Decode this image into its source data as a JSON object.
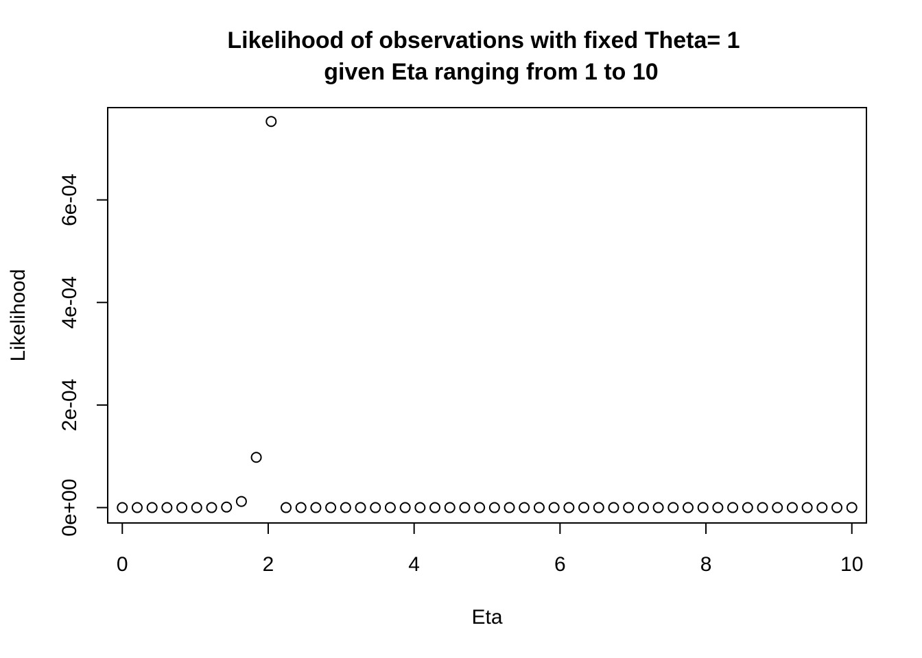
{
  "chart_data": {
    "type": "scatter",
    "title": "Likelihood of observations with fixed Theta= 1",
    "subtitle": "given Eta ranging from 1 to 10",
    "xlabel": "Eta",
    "ylabel": "Likelihood",
    "xlim": [
      -0.2,
      10.2
    ],
    "ylim": [
      -3e-05,
      0.00078
    ],
    "x_ticks": [
      0,
      2,
      4,
      6,
      8,
      10
    ],
    "x_tick_labels": [
      "0",
      "2",
      "4",
      "6",
      "8",
      "10"
    ],
    "y_ticks": [
      0,
      0.0002,
      0.0004,
      0.0006
    ],
    "y_tick_labels": [
      "0e+00",
      "2e-04",
      "4e-04",
      "6e-04"
    ],
    "grid": false,
    "legend": "none",
    "x": [
      0,
      0.2041,
      0.4082,
      0.6122,
      0.8163,
      1.0204,
      1.2245,
      1.4286,
      1.6327,
      1.8367,
      2.0408,
      2.2449,
      2.449,
      2.6531,
      2.8571,
      3.0612,
      3.2653,
      3.4694,
      3.6735,
      3.8776,
      4.0816,
      4.2857,
      4.4898,
      4.6939,
      4.898,
      5.102,
      5.3061,
      5.5102,
      5.7143,
      5.9184,
      6.1224,
      6.3265,
      6.5306,
      6.7347,
      6.9388,
      7.1429,
      7.3469,
      7.551,
      7.7551,
      7.9592,
      8.1633,
      8.3673,
      8.5714,
      8.7755,
      8.9796,
      9.1837,
      9.3878,
      9.5918,
      9.7959,
      10
    ],
    "y": [
      0,
      0,
      0,
      0,
      0,
      0,
      0,
      1e-06,
      1.2e-05,
      9.8e-05,
      0.000753,
      0,
      0,
      0,
      0,
      0,
      0,
      0,
      0,
      0,
      0,
      0,
      0,
      0,
      0,
      0,
      0,
      0,
      0,
      0,
      0,
      0,
      0,
      0,
      0,
      0,
      0,
      0,
      0,
      0,
      0,
      0,
      0,
      0,
      0,
      0,
      0,
      0,
      0,
      0
    ]
  }
}
